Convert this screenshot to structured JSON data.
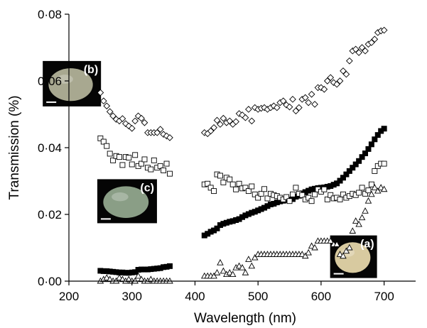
{
  "chart_data": {
    "type": "scatter",
    "xlabel": "Wavelength (nm)",
    "ylabel": "Transmission (%)",
    "xlim": [
      200,
      750
    ],
    "ylim": [
      0,
      0.08
    ],
    "x_ticks": [
      "200",
      "300",
      "400",
      "500",
      "600",
      "700"
    ],
    "y_ticks": [
      "0·00",
      "0·02",
      "0·04",
      "0·06",
      "0·08"
    ],
    "grid": false,
    "series": [
      {
        "marker": "filled-square",
        "color": "#000000",
        "x": [
          250,
          255,
          260,
          265,
          270,
          275,
          280,
          285,
          290,
          295,
          300,
          305,
          310,
          315,
          320,
          325,
          330,
          335,
          340,
          345,
          350,
          355,
          360,
          415,
          420,
          425,
          430,
          435,
          440,
          445,
          450,
          455,
          460,
          465,
          470,
          475,
          480,
          485,
          490,
          495,
          500,
          505,
          510,
          515,
          520,
          525,
          530,
          535,
          540,
          545,
          550,
          555,
          560,
          565,
          570,
          575,
          580,
          585,
          590,
          595,
          600,
          605,
          610,
          615,
          620,
          625,
          630,
          635,
          640,
          645,
          650,
          655,
          660,
          665,
          670,
          675,
          680,
          685,
          690,
          695,
          700
        ],
        "y": [
          0.0031,
          0.003,
          0.003,
          0.0029,
          0.0028,
          0.0027,
          0.0026,
          0.0026,
          0.0025,
          0.0025,
          0.0026,
          0.0027,
          0.0034,
          0.0035,
          0.0035,
          0.0035,
          0.0036,
          0.0037,
          0.0038,
          0.0039,
          0.0042,
          0.0043,
          0.0045,
          0.0137,
          0.0142,
          0.0148,
          0.0152,
          0.0158,
          0.0168,
          0.0172,
          0.0175,
          0.0178,
          0.018,
          0.0183,
          0.0186,
          0.0192,
          0.0197,
          0.0201,
          0.0205,
          0.0208,
          0.0212,
          0.0216,
          0.022,
          0.0225,
          0.023,
          0.0232,
          0.0236,
          0.0239,
          0.0241,
          0.0243,
          0.0244,
          0.0246,
          0.0253,
          0.0256,
          0.0263,
          0.0267,
          0.0271,
          0.0275,
          0.0277,
          0.0279,
          0.028,
          0.0281,
          0.0283,
          0.0285,
          0.0289,
          0.0293,
          0.0301,
          0.031,
          0.032,
          0.033,
          0.034,
          0.035,
          0.036,
          0.0372,
          0.0383,
          0.0396,
          0.041,
          0.0425,
          0.0438,
          0.045,
          0.0457
        ]
      },
      {
        "marker": "open-diamond",
        "color": "#000000",
        "x": [
          250,
          255,
          260,
          265,
          270,
          275,
          280,
          285,
          290,
          295,
          300,
          305,
          310,
          315,
          320,
          325,
          330,
          335,
          340,
          345,
          350,
          355,
          360,
          415,
          420,
          425,
          430,
          435,
          440,
          445,
          450,
          455,
          460,
          465,
          470,
          475,
          480,
          485,
          490,
          495,
          500,
          505,
          510,
          515,
          520,
          525,
          530,
          535,
          540,
          545,
          550,
          555,
          560,
          565,
          570,
          575,
          580,
          585,
          590,
          595,
          600,
          605,
          610,
          615,
          620,
          625,
          630,
          635,
          640,
          645,
          650,
          655,
          660,
          665,
          670,
          675,
          680,
          685,
          690,
          695,
          700
        ],
        "y": [
          0.0565,
          0.054,
          0.0525,
          0.0508,
          0.0495,
          0.0485,
          0.048,
          0.0487,
          0.0472,
          0.0465,
          0.0458,
          0.048,
          0.0495,
          0.0488,
          0.0475,
          0.0445,
          0.0445,
          0.0445,
          0.0445,
          0.0455,
          0.044,
          0.0435,
          0.043,
          0.0445,
          0.0442,
          0.045,
          0.046,
          0.0482,
          0.047,
          0.0488,
          0.0475,
          0.048,
          0.047,
          0.0478,
          0.0502,
          0.0498,
          0.049,
          0.0515,
          0.048,
          0.052,
          0.0515,
          0.0518,
          0.052,
          0.0515,
          0.052,
          0.0525,
          0.052,
          0.0535,
          0.054,
          0.0528,
          0.0522,
          0.0545,
          0.051,
          0.052,
          0.0545,
          0.055,
          0.0535,
          0.056,
          0.053,
          0.058,
          0.058,
          0.0575,
          0.06,
          0.061,
          0.0595,
          0.059,
          0.06,
          0.063,
          0.062,
          0.066,
          0.069,
          0.0695,
          0.0685,
          0.07,
          0.069,
          0.071,
          0.0715,
          0.0725,
          0.0745,
          0.075,
          0.0752
        ]
      },
      {
        "marker": "open-square",
        "color": "#000000",
        "x": [
          250,
          255,
          260,
          265,
          270,
          275,
          280,
          285,
          290,
          295,
          300,
          305,
          310,
          315,
          320,
          325,
          330,
          335,
          340,
          345,
          350,
          355,
          360,
          415,
          420,
          425,
          430,
          435,
          440,
          445,
          450,
          455,
          460,
          465,
          470,
          475,
          480,
          485,
          490,
          495,
          500,
          505,
          510,
          515,
          520,
          525,
          530,
          535,
          540,
          545,
          550,
          555,
          560,
          565,
          570,
          575,
          580,
          585,
          590,
          595,
          600,
          605,
          610,
          615,
          620,
          625,
          630,
          635,
          640,
          645,
          650,
          655,
          660,
          665,
          670,
          675,
          680,
          685,
          690,
          695,
          700
        ],
        "y": [
          0.0428,
          0.0418,
          0.0405,
          0.0382,
          0.0362,
          0.0375,
          0.0372,
          0.0348,
          0.0372,
          0.037,
          0.035,
          0.0378,
          0.0345,
          0.0352,
          0.0365,
          0.034,
          0.0335,
          0.0362,
          0.034,
          0.0345,
          0.0332,
          0.0352,
          0.0322,
          0.029,
          0.0292,
          0.028,
          0.027,
          0.032,
          0.0316,
          0.0296,
          0.031,
          0.0305,
          0.029,
          0.0275,
          0.0292,
          0.0278,
          0.028,
          0.027,
          0.0284,
          0.026,
          0.025,
          0.0262,
          0.0276,
          0.0248,
          0.0262,
          0.0258,
          0.0255,
          0.025,
          0.0245,
          0.0252,
          0.024,
          0.026,
          0.028,
          0.0262,
          0.0258,
          0.0245,
          0.025,
          0.024,
          0.026,
          0.0275,
          0.0268,
          0.0275,
          0.0245,
          0.0258,
          0.0248,
          0.025,
          0.0245,
          0.026,
          0.025,
          0.0255,
          0.0262,
          0.0258,
          0.0265,
          0.028,
          0.0262,
          0.0272,
          0.029,
          0.033,
          0.0345,
          0.0352,
          0.0352
        ]
      },
      {
        "marker": "open-triangle",
        "color": "#000000",
        "x": [
          250,
          255,
          260,
          265,
          270,
          275,
          280,
          285,
          290,
          295,
          300,
          305,
          310,
          315,
          320,
          325,
          330,
          335,
          340,
          345,
          350,
          355,
          360,
          415,
          420,
          425,
          430,
          435,
          440,
          445,
          450,
          455,
          460,
          465,
          470,
          475,
          480,
          485,
          490,
          495,
          500,
          505,
          510,
          515,
          520,
          525,
          530,
          535,
          540,
          545,
          550,
          555,
          560,
          565,
          570,
          575,
          580,
          585,
          590,
          595,
          600,
          605,
          610,
          615,
          620,
          625,
          630,
          635,
          640,
          645,
          650,
          655,
          660,
          665,
          670,
          675,
          680,
          685,
          690,
          695,
          700
        ],
        "y": [
          0.0,
          0.0005,
          0.001,
          0.0005,
          0.0,
          0.0,
          0.001,
          0.0005,
          0.0,
          0.0005,
          0.0,
          0.0,
          0.0015,
          0.0005,
          0.0,
          0.0,
          0.0005,
          0.0,
          0.0,
          0.0,
          0.0,
          0.0,
          0.0,
          0.0015,
          0.0015,
          0.0015,
          0.0015,
          0.0025,
          0.0055,
          0.003,
          0.002,
          0.0025,
          0.002,
          0.004,
          0.0045,
          0.004,
          0.0025,
          0.0065,
          0.0045,
          0.007,
          0.008,
          0.008,
          0.008,
          0.008,
          0.008,
          0.008,
          0.008,
          0.008,
          0.008,
          0.008,
          0.008,
          0.008,
          0.008,
          0.008,
          0.008,
          0.0075,
          0.0085,
          0.0105,
          0.01,
          0.012,
          0.012,
          0.012,
          0.012,
          0.012,
          0.011,
          0.011,
          0.008,
          0.0075,
          0.009,
          0.01,
          0.015,
          0.018,
          0.017,
          0.019,
          0.021,
          0.024,
          0.026,
          0.028,
          0.027,
          0.028,
          0.0275
        ]
      }
    ],
    "annotations": [
      {
        "label": "(a)",
        "kind": "egg photo inset",
        "egg_color": "#d8caa0",
        "anchor": {
          "x": 700,
          "y": 0.012
        }
      },
      {
        "label": "(b)",
        "kind": "egg photo inset",
        "egg_color": "#a8a890",
        "anchor": {
          "x": 305,
          "y": 0.063
        }
      },
      {
        "label": "(c)",
        "kind": "egg photo inset",
        "egg_color": "#8a9e86",
        "anchor": {
          "x": 245,
          "y": 0.028
        }
      }
    ]
  }
}
